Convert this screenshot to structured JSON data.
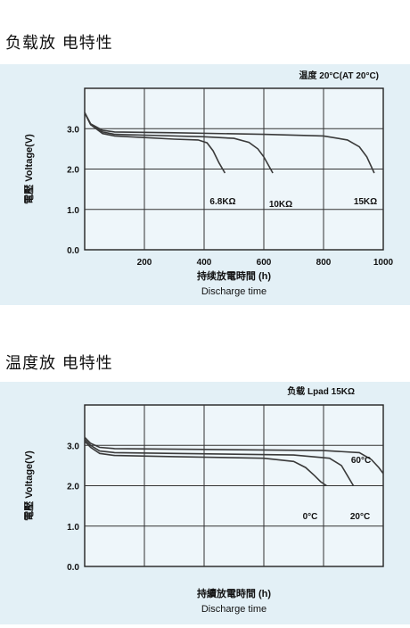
{
  "chart_data": [
    {
      "type": "line",
      "section_title": "负载放 电特性",
      "title": "温度 20°C(AT 20°C)",
      "xlabel": "持续放電時間 (h)",
      "xlabel_en": "Discharge time",
      "ylabel": "電壓 Voltage(V)",
      "xlim": [
        0,
        1000
      ],
      "ylim": [
        0,
        4.0
      ],
      "xticks": [
        "200",
        "400",
        "600",
        "800",
        "1000"
      ],
      "yticks": [
        "0.0",
        "1.0",
        "2.0",
        "3.0"
      ],
      "grid": true,
      "series": [
        {
          "name": "6.8KΩ",
          "x": [
            0,
            20,
            60,
            100,
            200,
            300,
            380,
            410,
            430,
            450,
            470
          ],
          "y": [
            3.4,
            3.1,
            2.88,
            2.82,
            2.78,
            2.74,
            2.72,
            2.65,
            2.45,
            2.15,
            1.9
          ]
        },
        {
          "name": "10KΩ",
          "x": [
            0,
            20,
            60,
            100,
            200,
            400,
            500,
            550,
            580,
            600,
            630
          ],
          "y": [
            3.4,
            3.1,
            2.92,
            2.86,
            2.84,
            2.8,
            2.76,
            2.66,
            2.5,
            2.3,
            1.9
          ]
        },
        {
          "name": "15KΩ",
          "x": [
            0,
            20,
            60,
            100,
            300,
            600,
            800,
            880,
            920,
            945,
            970
          ],
          "y": [
            3.4,
            3.12,
            2.96,
            2.92,
            2.9,
            2.86,
            2.82,
            2.72,
            2.55,
            2.3,
            1.9
          ]
        }
      ]
    },
    {
      "type": "line",
      "section_title": "温度放 电特性",
      "title": "负载 Lpad 15KΩ",
      "xlabel": "持續放電時間 (h)",
      "xlabel_en": "Discharge time",
      "ylabel": "電壓 Voltage(V)",
      "xlim": [
        0,
        1000
      ],
      "ylim": [
        0,
        4.0
      ],
      "xticks": [],
      "yticks": [
        "0.0",
        "1.0",
        "2.0",
        "3.0"
      ],
      "grid": true,
      "series": [
        {
          "name": "0°C",
          "x": [
            0,
            20,
            50,
            100,
            300,
            600,
            700,
            740,
            770,
            790,
            810
          ],
          "y": [
            3.1,
            2.95,
            2.8,
            2.75,
            2.72,
            2.68,
            2.6,
            2.45,
            2.25,
            2.1,
            2.0
          ]
        },
        {
          "name": "20°C",
          "x": [
            0,
            20,
            50,
            100,
            300,
            700,
            820,
            860,
            880,
            900
          ],
          "y": [
            3.15,
            3.0,
            2.86,
            2.82,
            2.8,
            2.76,
            2.68,
            2.5,
            2.25,
            2.0
          ]
        },
        {
          "name": "60°C",
          "x": [
            0,
            20,
            50,
            100,
            400,
            800,
            920,
            960,
            985,
            1000
          ],
          "y": [
            3.2,
            3.05,
            2.95,
            2.92,
            2.9,
            2.87,
            2.82,
            2.65,
            2.45,
            2.3
          ]
        }
      ]
    }
  ]
}
